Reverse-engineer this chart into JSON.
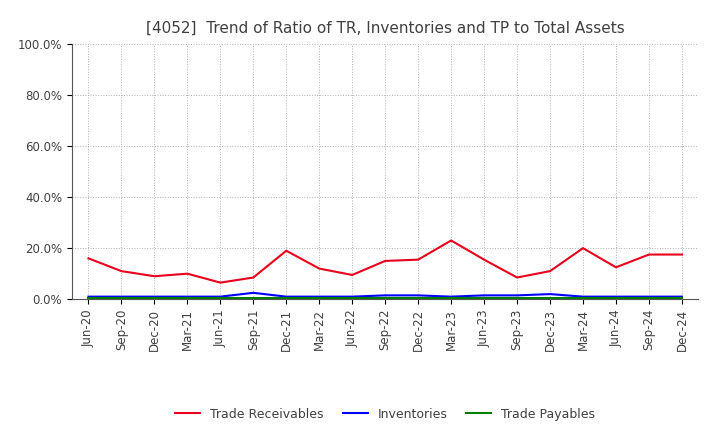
{
  "title": "[4052]  Trend of Ratio of TR, Inventories and TP to Total Assets",
  "x_labels": [
    "Jun-20",
    "Sep-20",
    "Dec-20",
    "Mar-21",
    "Jun-21",
    "Sep-21",
    "Dec-21",
    "Mar-22",
    "Jun-22",
    "Sep-22",
    "Dec-22",
    "Mar-23",
    "Jun-23",
    "Sep-23",
    "Dec-23",
    "Mar-24",
    "Jun-24",
    "Sep-24",
    "Dec-24"
  ],
  "trade_receivables": [
    0.16,
    0.11,
    0.09,
    0.1,
    0.065,
    0.085,
    0.19,
    0.12,
    0.095,
    0.15,
    0.155,
    0.23,
    0.155,
    0.085,
    0.11,
    0.2,
    0.125,
    0.175,
    0.175
  ],
  "inventories": [
    0.01,
    0.01,
    0.01,
    0.01,
    0.01,
    0.025,
    0.01,
    0.01,
    0.01,
    0.015,
    0.015,
    0.01,
    0.015,
    0.015,
    0.02,
    0.01,
    0.01,
    0.01,
    0.01
  ],
  "trade_payables": [
    0.003,
    0.003,
    0.003,
    0.003,
    0.003,
    0.003,
    0.003,
    0.003,
    0.003,
    0.003,
    0.003,
    0.003,
    0.003,
    0.003,
    0.003,
    0.003,
    0.003,
    0.003,
    0.003
  ],
  "tr_color": "#e8001c",
  "inv_color": "#0000ff",
  "tp_color": "#008000",
  "ylim": [
    0.0,
    1.0
  ],
  "yticks": [
    0.0,
    0.2,
    0.4,
    0.6,
    0.8,
    1.0
  ],
  "bg_color": "#ffffff",
  "grid_color": "#b0b0b0",
  "title_fontsize": 11,
  "title_color": "#404040",
  "tick_color": "#404040",
  "legend_labels": [
    "Trade Receivables",
    "Inventories",
    "Trade Payables"
  ],
  "line_width": 1.5,
  "tick_fontsize": 8.5
}
